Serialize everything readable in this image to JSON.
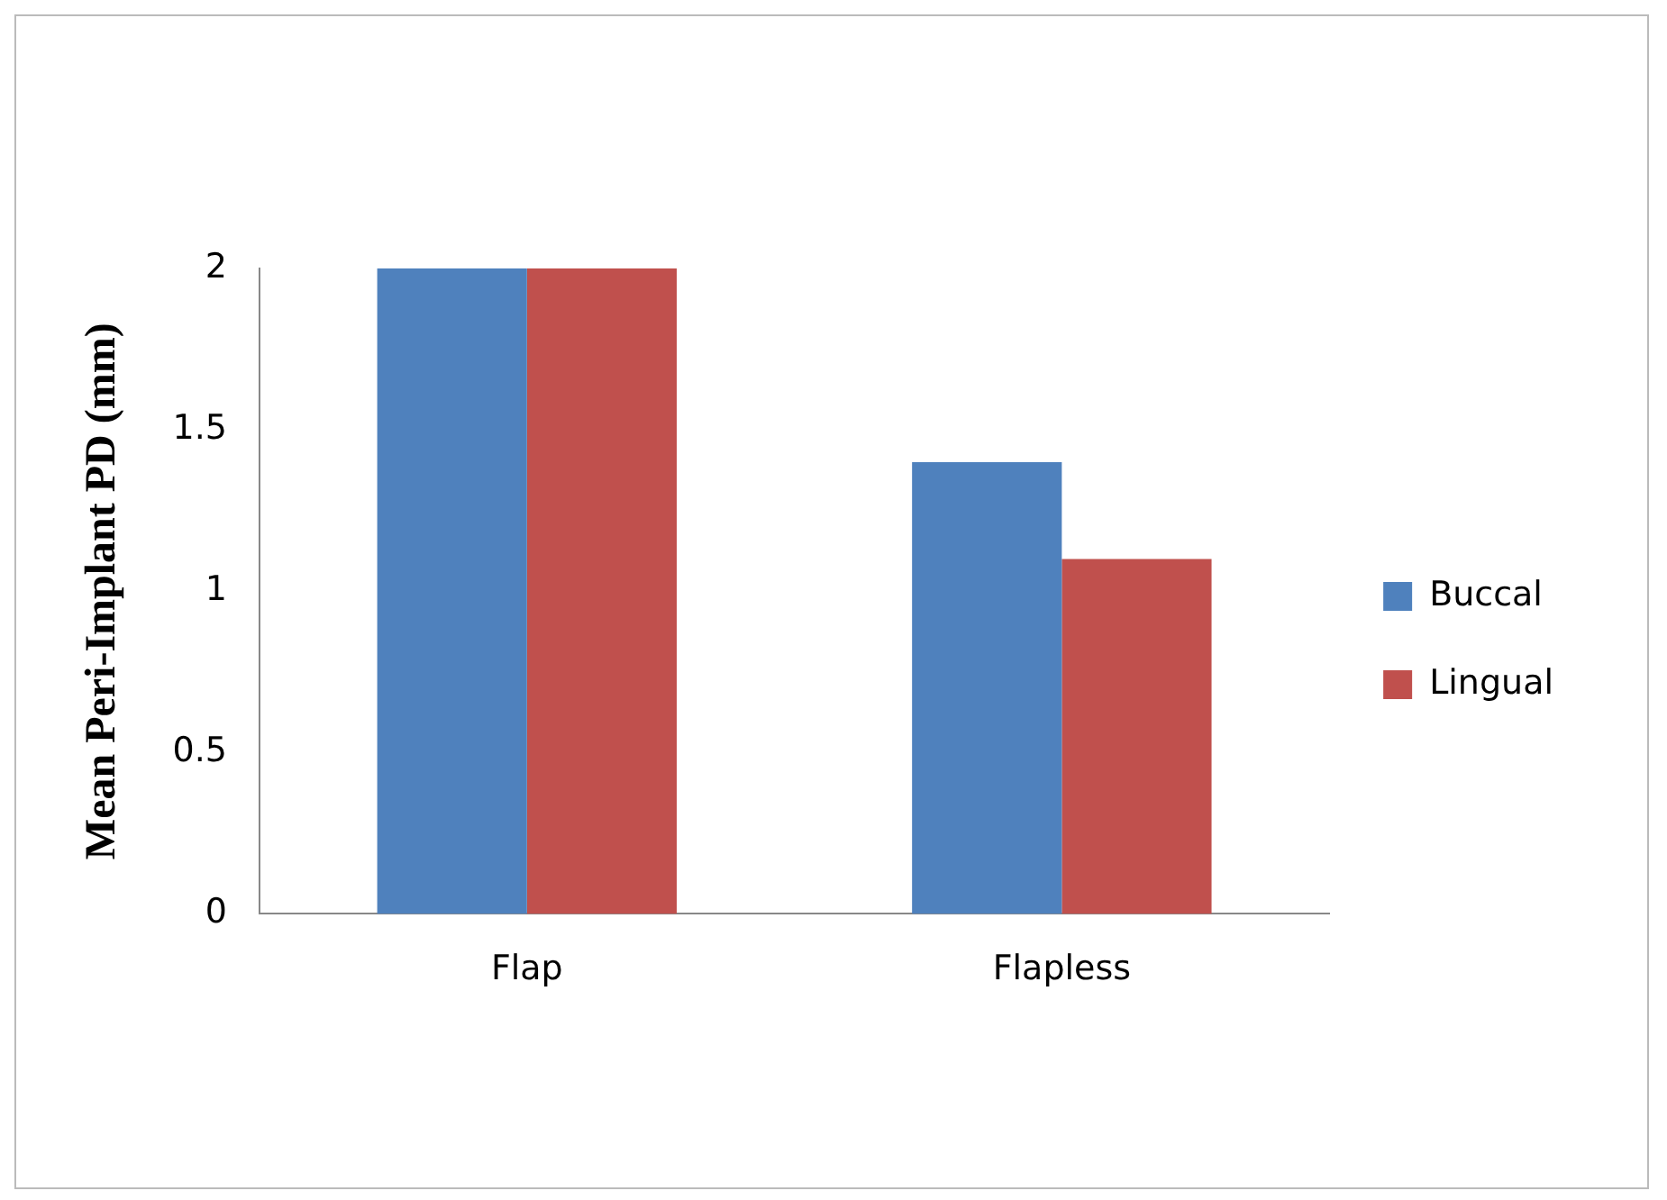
{
  "chart_data": {
    "type": "bar",
    "ylabel": "Mean Peri-Implant PD (mm)",
    "categories": [
      "Flap",
      "Flapless"
    ],
    "series": [
      {
        "name": "Buccal",
        "color": "#4f81bd",
        "values": [
          2.0,
          1.4
        ]
      },
      {
        "name": "Lingual",
        "color": "#c0504d",
        "values": [
          2.0,
          1.1
        ]
      }
    ],
    "ylim": [
      0,
      2
    ],
    "yticks": [
      0,
      0.5,
      1,
      1.5,
      2
    ],
    "grid": false,
    "legend": "right"
  }
}
